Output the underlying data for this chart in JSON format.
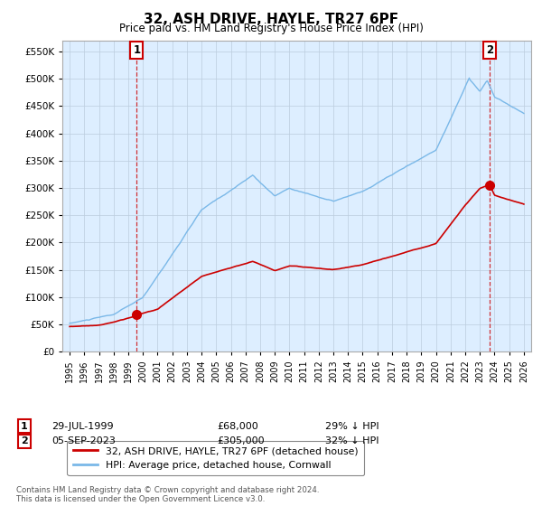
{
  "title": "32, ASH DRIVE, HAYLE, TR27 6PF",
  "subtitle": "Price paid vs. HM Land Registry's House Price Index (HPI)",
  "hpi_color": "#7ab8e8",
  "price_color": "#cc0000",
  "plot_bg_color": "#ddeeff",
  "background_color": "#ffffff",
  "grid_color": "#bbccdd",
  "ylim": [
    0,
    570000
  ],
  "yticks": [
    0,
    50000,
    100000,
    150000,
    200000,
    250000,
    300000,
    350000,
    400000,
    450000,
    500000,
    550000
  ],
  "sale1_year": 1999.58,
  "sale1_price": 68000,
  "sale1_date": "29-JUL-1999",
  "sale1_pct": "29% ↓ HPI",
  "sale2_year": 2023.68,
  "sale2_price": 305000,
  "sale2_date": "05-SEP-2023",
  "sale2_pct": "32% ↓ HPI",
  "legend_label1": "32, ASH DRIVE, HAYLE, TR27 6PF (detached house)",
  "legend_label2": "HPI: Average price, detached house, Cornwall",
  "footer": "Contains HM Land Registry data © Crown copyright and database right 2024.\nThis data is licensed under the Open Government Licence v3.0."
}
